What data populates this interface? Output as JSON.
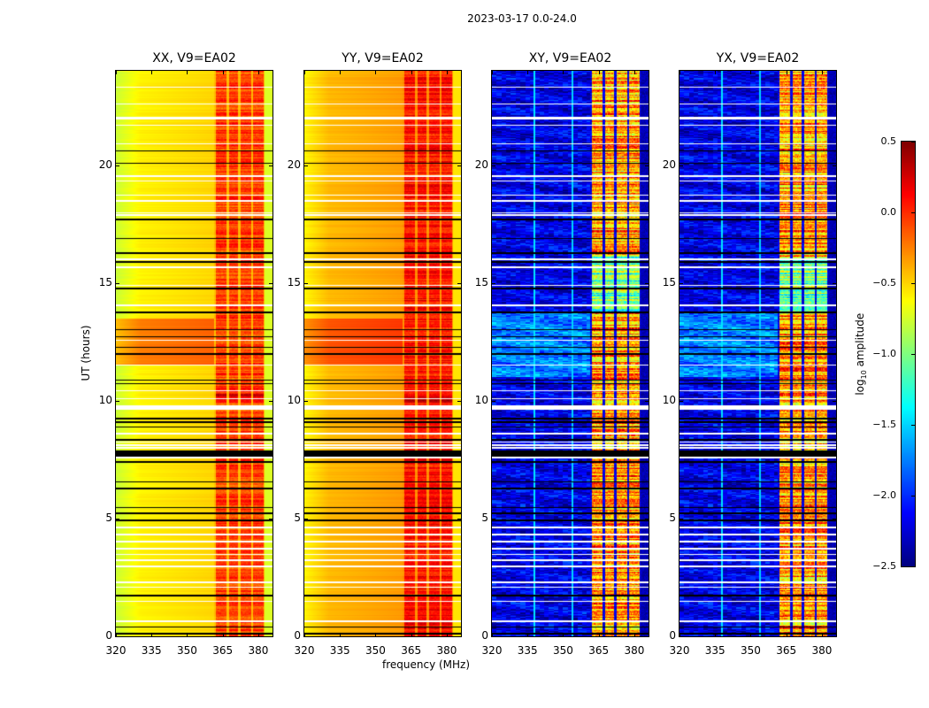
{
  "chart_data": {
    "type": "heatmap",
    "title": "2023-03-17 0.0-24.0",
    "xlabel": "frequency (MHz)",
    "ylabel": "UT (hours)",
    "xlim": [
      320,
      386
    ],
    "ylim": [
      0,
      24
    ],
    "xticks": [
      "320",
      "335",
      "350",
      "365",
      "380"
    ],
    "xtick_values": [
      320,
      335,
      350,
      365,
      380
    ],
    "yticks": [
      "0",
      "5",
      "10",
      "15",
      "20"
    ],
    "ytick_values": [
      0,
      5,
      10,
      15,
      20
    ],
    "colorbar": {
      "label_main": "log",
      "label_sub": "10",
      "label_rest": " amplitude",
      "clim": [
        -2.5,
        0.5
      ],
      "colormap": "jet",
      "ticks": [
        "0.5",
        "0.0",
        "−0.5",
        "−1.0",
        "−1.5",
        "−2.0",
        "−2.5"
      ],
      "tick_values": [
        0.5,
        0.0,
        -0.5,
        -1.0,
        -1.5,
        -2.0,
        -2.5
      ]
    },
    "rfi_bands_mhz": [
      [
        362,
        366.5
      ],
      [
        367.6,
        371.4
      ],
      [
        372.5,
        377
      ],
      [
        377.7,
        382.3
      ]
    ],
    "flagged_white_hours": [
      23.29,
      22.58,
      22.01,
      21.94,
      21.68,
      20.89,
      19.53,
      19.31,
      18.71,
      18.48,
      17.96,
      17.88,
      16.0,
      15.66,
      14.88,
      14.05,
      12.55,
      11.5,
      10.41,
      10.1,
      8.6,
      8.23,
      8.11,
      8.0,
      7.59,
      4.62,
      4.32,
      4.02,
      3.72,
      3.46,
      3.23,
      2.97,
      2.29,
      2.1,
      1.47,
      0.64
    ],
    "flagged_white_ranges": [
      [
        9.62,
        9.8
      ]
    ],
    "zero_black_hours": [
      20.59,
      20.06,
      17.69,
      16.87,
      15.89,
      14.76,
      13.0,
      12.7,
      12.25,
      11.98,
      10.86,
      10.71,
      9.24,
      9.09,
      8.87,
      8.34,
      7.4,
      6.54,
      6.27,
      5.48,
      5.22,
      4.92,
      1.73,
      0.38,
      0.11
    ],
    "zero_black_ranges": [
      [
        16.22,
        16.3
      ],
      [
        13.7,
        13.78
      ],
      [
        7.63,
        7.89
      ]
    ],
    "panels": [
      {
        "title": "XX, V9=EA02",
        "kind": "parallel",
        "base_level": -0.62,
        "edge_level": -0.78,
        "band_level": -0.05,
        "gap_level": -0.42,
        "segments": [
          {
            "hours": [
              11.5,
              13.5
            ],
            "low_offset": 0.35
          },
          {
            "hours": [
              9.9,
              10.3
            ],
            "band_offset": 0.25
          }
        ]
      },
      {
        "title": "YY, V9=EA02",
        "kind": "parallel",
        "base_level": -0.45,
        "edge_level": -0.6,
        "band_level": 0.08,
        "gap_level": -0.3,
        "segments": [
          {
            "hours": [
              11.5,
              13.5
            ],
            "low_offset": 0.3
          },
          {
            "hours": [
              9.9,
              10.3
            ],
            "band_offset": 0.2
          }
        ]
      },
      {
        "title": "XY, V9=EA02",
        "kind": "cross",
        "base_level": -2.2,
        "edge_level": -2.35,
        "band_level": -0.35,
        "gap_level": -2.2,
        "segments": [
          {
            "hours": [
              11.0,
              13.7
            ],
            "low_offset": 0.45
          },
          {
            "hours": [
              13.8,
              16.1
            ],
            "band_offset": -0.7
          }
        ]
      },
      {
        "title": "YX, V9=EA02",
        "kind": "cross",
        "base_level": -2.2,
        "edge_level": -2.35,
        "band_level": -0.35,
        "gap_level": -2.2,
        "segments": [
          {
            "hours": [
              11.0,
              13.7
            ],
            "low_offset": 0.45
          },
          {
            "hours": [
              13.8,
              16.1
            ],
            "band_offset": -0.7
          }
        ]
      }
    ]
  }
}
